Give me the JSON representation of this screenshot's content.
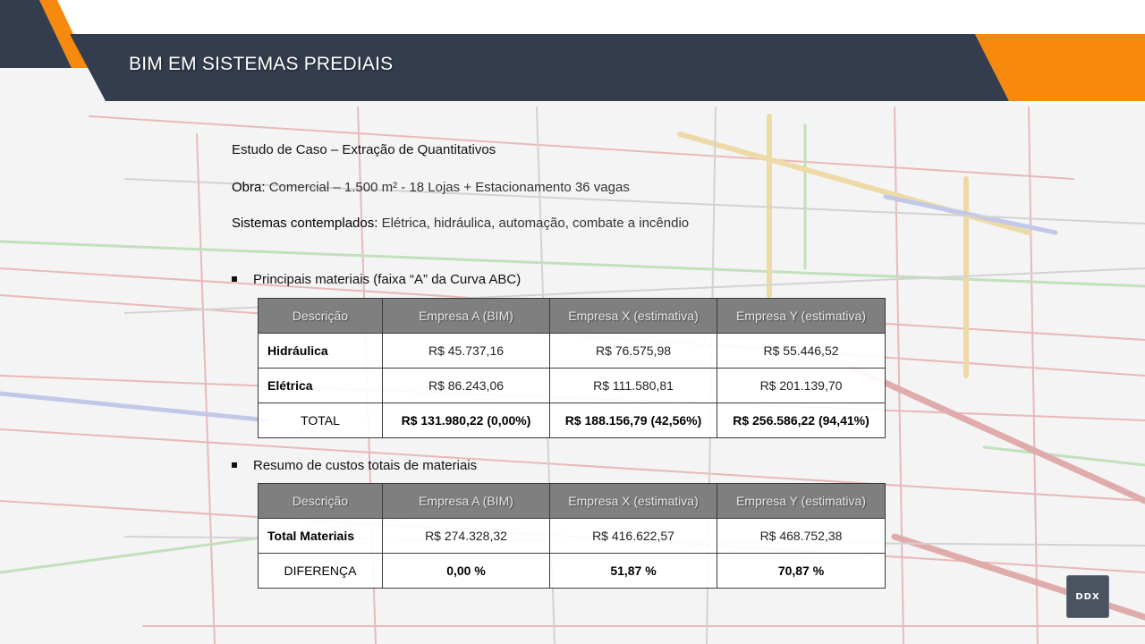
{
  "header": {
    "title": "BIM EM SISTEMAS PREDIAIS"
  },
  "info": {
    "line1": "Estudo de Caso – Extração de Quantitativos",
    "obra_label": "Obra:",
    "obra_value": "Comercial – 1.500 m² - 18 Lojas + Estacionamento 36 vagas",
    "sistemas_label": "Sistemas contemplados:",
    "sistemas_value": "Elétrica, hidráulica, automação, combate a incêndio"
  },
  "section1": {
    "bullet": "Principais materiais (faixa “A” da Curva ABC)",
    "headers": [
      "Descrição",
      "Empresa A (BIM)",
      "Empresa X (estimativa)",
      "Empresa Y (estimativa)"
    ],
    "rows": [
      [
        "Hidráulica",
        "R$ 45.737,16",
        "R$ 76.575,98",
        "R$ 55.446,52"
      ],
      [
        "Elétrica",
        "R$ 86.243,06",
        "R$ 111.580,81",
        "R$ 201.139,70"
      ],
      [
        "TOTAL",
        "R$ 131.980,22 (0,00%)",
        "R$ 188.156,79 (42,56%)",
        "R$ 256.586,22 (94,41%)"
      ]
    ]
  },
  "section2": {
    "bullet": "Resumo de custos totais de materiais",
    "headers": [
      "Descrição",
      "Empresa A (BIM)",
      "Empresa X (estimativa)",
      "Empresa Y (estimativa)"
    ],
    "rows": [
      [
        "Total Materiais",
        "R$ 274.328,32",
        "R$ 416.622,57",
        "R$ 468.752,38"
      ],
      [
        "DIFERENÇA",
        "0,00 %",
        "51,87 %",
        "70,87 %"
      ]
    ]
  },
  "logo": {
    "text": "DDX"
  },
  "colors": {
    "banner": "#333d4d",
    "accent": "#f7890f",
    "header_cell": "#7f7f7f"
  }
}
